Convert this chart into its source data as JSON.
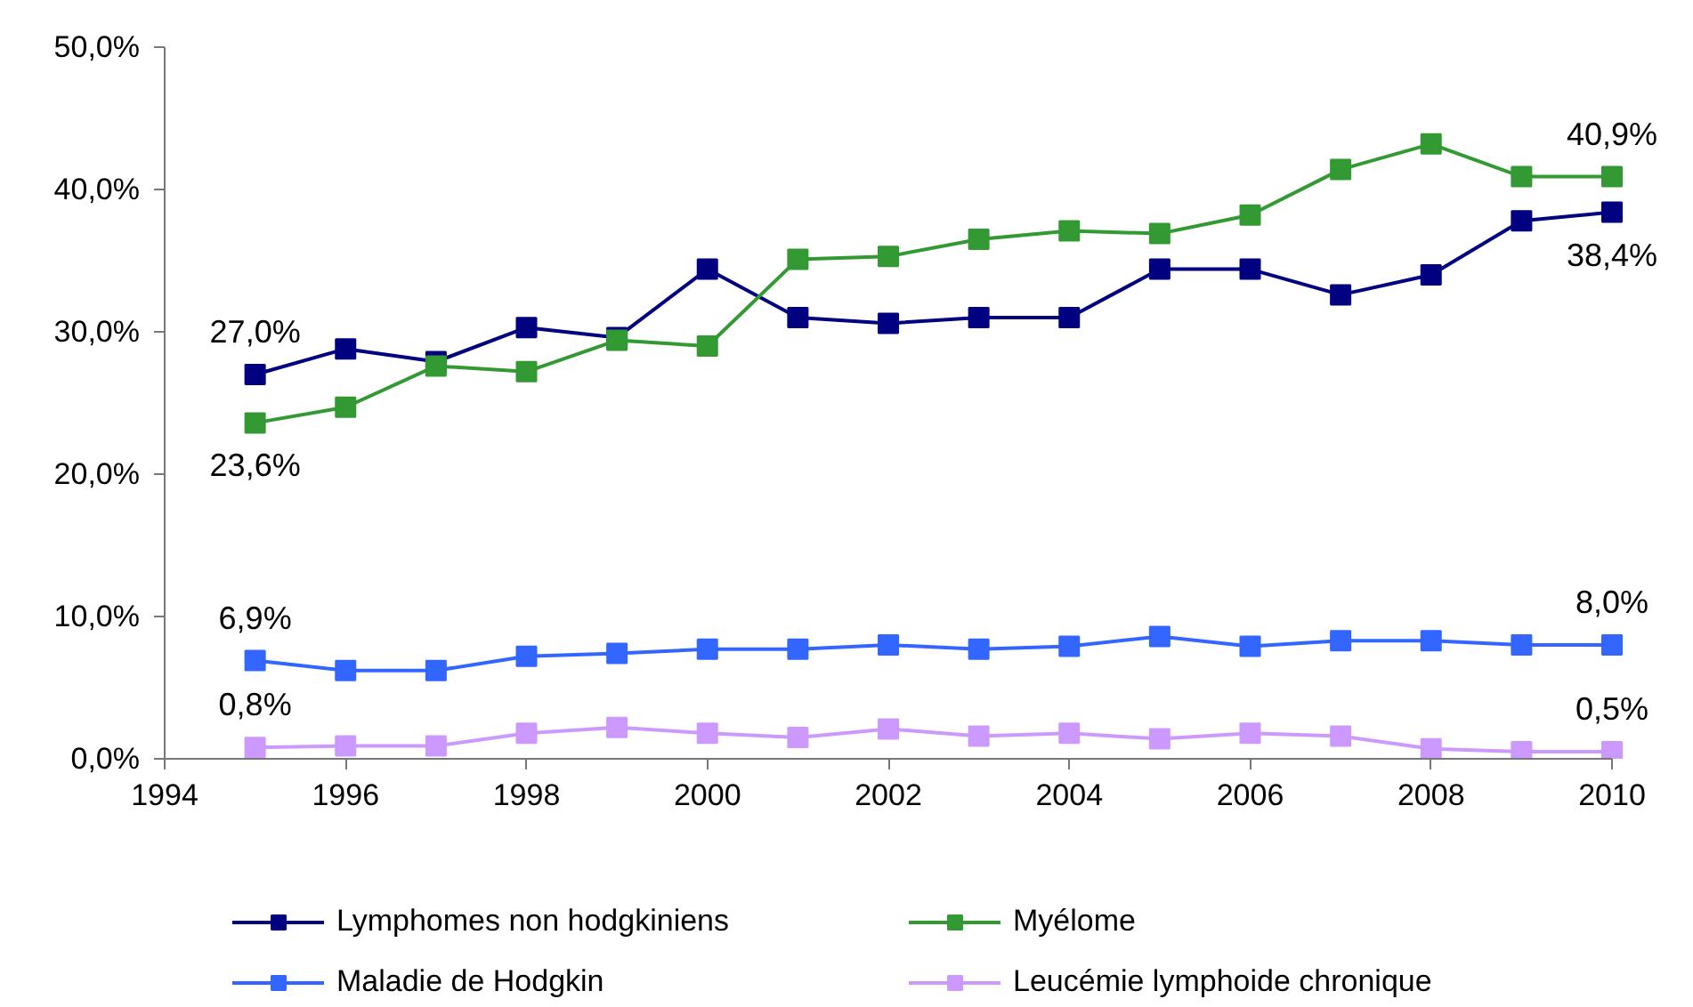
{
  "chart_data": {
    "type": "line",
    "x": [
      1995,
      1996,
      1997,
      1998,
      1999,
      2000,
      2001,
      2002,
      2003,
      2004,
      2005,
      2006,
      2007,
      2008,
      2009,
      2010
    ],
    "xlim": [
      1994,
      2010
    ],
    "xticks": [
      1994,
      1996,
      1998,
      2000,
      2002,
      2004,
      2006,
      2008,
      2010
    ],
    "ylim": [
      0,
      50
    ],
    "yticks": [
      {
        "value": 0,
        "label": "0,0%"
      },
      {
        "value": 10,
        "label": "10,0%"
      },
      {
        "value": 20,
        "label": "20,0%"
      },
      {
        "value": 30,
        "label": "30,0%"
      },
      {
        "value": 40,
        "label": "40,0%"
      },
      {
        "value": 50,
        "label": "50,0%"
      }
    ],
    "series": [
      {
        "name": "Lymphomes non hodgkiniens",
        "color": "#000080",
        "values": [
          27.0,
          28.8,
          27.9,
          30.3,
          29.6,
          34.4,
          31.0,
          30.6,
          31.0,
          31.0,
          34.4,
          34.4,
          32.6,
          34.0,
          37.8,
          38.4
        ],
        "value_labels": [
          "27,0%",
          null,
          null,
          null,
          null,
          null,
          null,
          null,
          null,
          null,
          null,
          null,
          null,
          null,
          null,
          "38,4%"
        ]
      },
      {
        "name": "Myélome",
        "color": "#339933",
        "values": [
          23.6,
          24.7,
          27.6,
          27.2,
          29.4,
          29.0,
          35.1,
          35.3,
          36.5,
          37.1,
          36.9,
          38.2,
          41.4,
          43.2,
          40.9,
          40.9
        ],
        "value_labels": [
          "23,6%",
          null,
          null,
          null,
          null,
          null,
          null,
          null,
          null,
          null,
          null,
          null,
          null,
          null,
          null,
          "40,9%"
        ]
      },
      {
        "name": "Maladie de Hodgkin",
        "color": "#3366ff",
        "values": [
          6.9,
          6.2,
          6.2,
          7.2,
          7.4,
          7.7,
          7.7,
          8.0,
          7.7,
          7.9,
          8.6,
          7.9,
          8.3,
          8.3,
          8.0,
          8.0
        ],
        "value_labels": [
          "6,9%",
          null,
          null,
          null,
          null,
          null,
          null,
          null,
          null,
          null,
          null,
          null,
          null,
          null,
          null,
          "8,0%"
        ]
      },
      {
        "name": "Leucémie lymphoide chronique",
        "color": "#cc99ff",
        "values": [
          0.8,
          0.9,
          0.9,
          1.8,
          2.2,
          1.8,
          1.5,
          2.1,
          1.6,
          1.8,
          1.4,
          1.8,
          1.6,
          0.7,
          0.5,
          0.5
        ],
        "value_labels": [
          "0,8%",
          null,
          null,
          null,
          null,
          null,
          null,
          null,
          null,
          null,
          null,
          null,
          null,
          null,
          null,
          "0,5%"
        ]
      }
    ],
    "marker": "square",
    "line_style": "solid",
    "grid": false,
    "legend": "bottom"
  }
}
